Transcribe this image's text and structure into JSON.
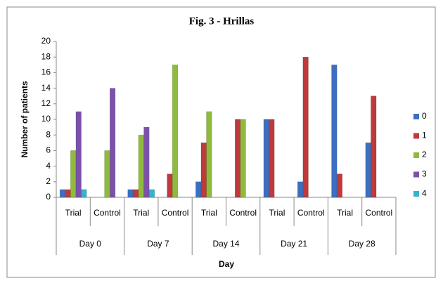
{
  "chart_data": {
    "type": "bar",
    "title": "Fig. 3 - Hrillas",
    "y_label": "Number of patients",
    "x_label": "Day",
    "groups": [
      "Day 0",
      "Day 7",
      "Day 14",
      "Day 21",
      "Day 28"
    ],
    "categories": [
      "Trial",
      "Control",
      "Trial",
      "Control",
      "Trial",
      "Control",
      "Trial",
      "Control",
      "Trial",
      "Control"
    ],
    "series": [
      {
        "name": "0",
        "color": "#3c6fc0",
        "values": [
          1,
          0,
          1,
          0,
          2,
          0,
          10,
          2,
          17,
          7
        ]
      },
      {
        "name": "1",
        "color": "#c0393b",
        "values": [
          1,
          0,
          1,
          3,
          7,
          10,
          10,
          18,
          3,
          13
        ]
      },
      {
        "name": "2",
        "color": "#8fbb3c",
        "values": [
          6,
          6,
          8,
          17,
          11,
          10,
          0,
          0,
          0,
          0
        ]
      },
      {
        "name": "3",
        "color": "#7b52a8",
        "values": [
          11,
          14,
          9,
          0,
          0,
          0,
          0,
          0,
          0,
          0
        ]
      },
      {
        "name": "4",
        "color": "#33b3d0",
        "values": [
          1,
          0,
          1,
          0,
          0,
          0,
          0,
          0,
          0,
          0
        ]
      }
    ],
    "ylim": [
      0,
      20
    ],
    "yticks": [
      0,
      2,
      4,
      6,
      8,
      10,
      12,
      14,
      16,
      18,
      20
    ],
    "legend": "right"
  }
}
